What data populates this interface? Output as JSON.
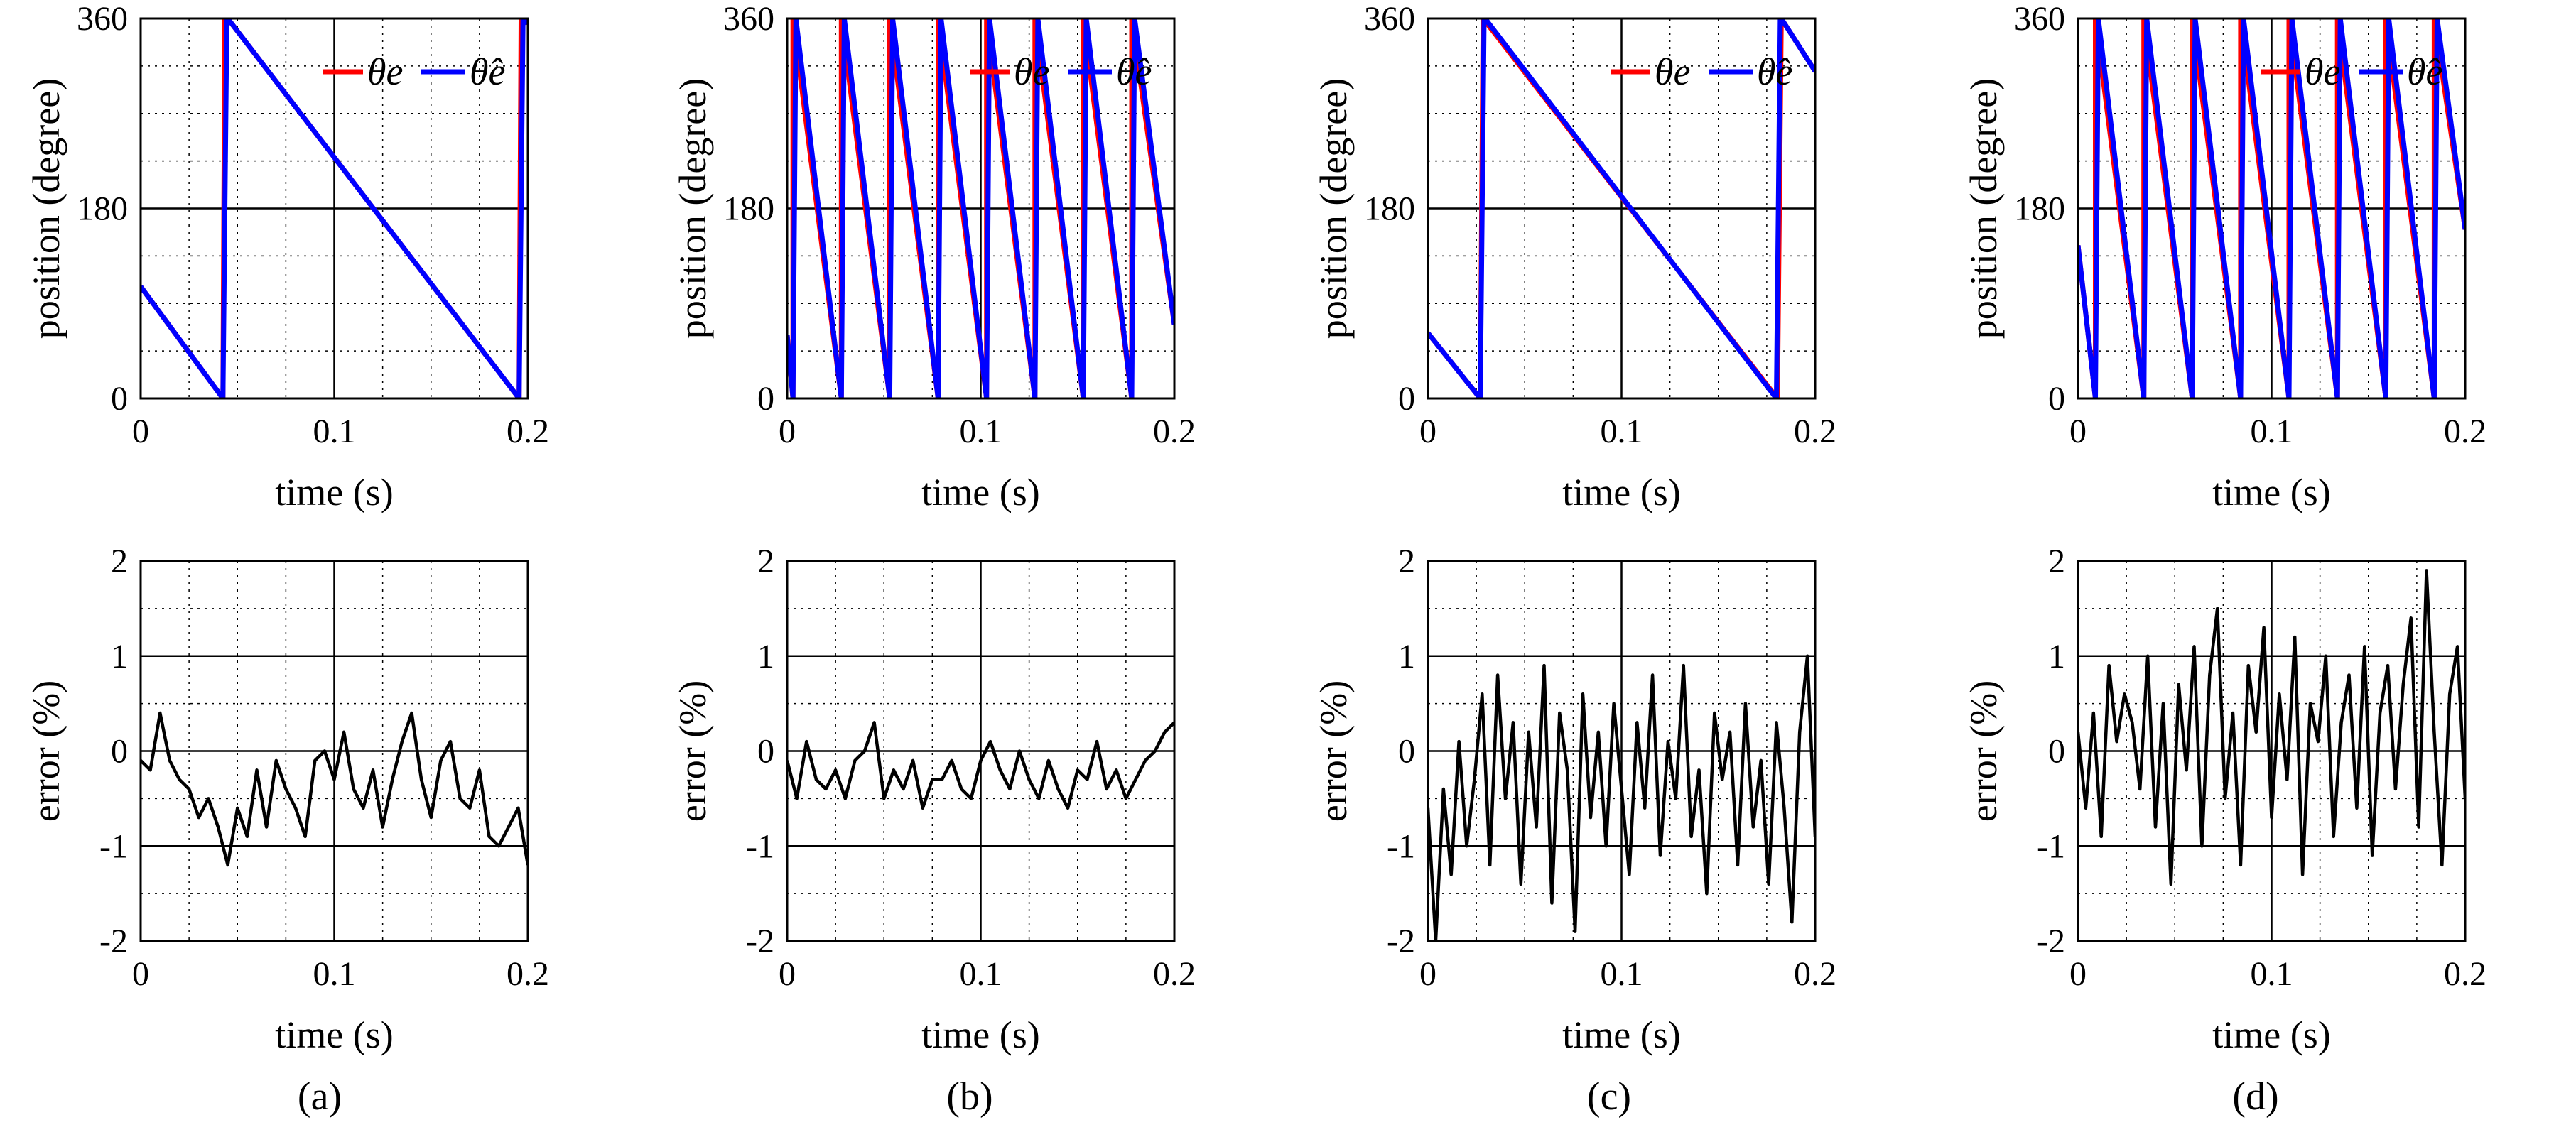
{
  "chart_data": [
    {
      "panel": "a",
      "kind": "position",
      "type": "line",
      "xlabel": "time  (s)",
      "ylabel": "position (degree)",
      "xlim": [
        0,
        0.2
      ],
      "ylim": [
        0,
        360
      ],
      "xticks": [
        0,
        0.1,
        0.2
      ],
      "xtick_labels": [
        "0",
        "0.1",
        "0.2"
      ],
      "yticks": [
        0,
        180,
        360
      ],
      "ytick_labels": [
        "0",
        "180",
        "360"
      ],
      "grid": true,
      "legend": "top-right",
      "legend_entries": [
        "θe",
        "θ̂e"
      ],
      "series": [
        {
          "name": "θe",
          "color": "#ff0000",
          "x": [
            0,
            0.0425,
            0.0425,
            0.0435,
            0.045,
            0.1955,
            0.1955,
            0.1965,
            0.1975,
            0.2
          ],
          "y": [
            106,
            0,
            0,
            360,
            360,
            0,
            0,
            360,
            360,
            355
          ]
        },
        {
          "name": "θ̂e",
          "color": "#0000ff",
          "x": [
            0,
            0.0425,
            0.0445,
            0.045,
            0.1955,
            0.1975,
            0.198,
            0.2
          ],
          "y": [
            106,
            0,
            360,
            360,
            0,
            360,
            360,
            355
          ]
        }
      ]
    },
    {
      "panel": "b",
      "kind": "position",
      "type": "line",
      "xlabel": "time  (s)",
      "ylabel": "position (degree)",
      "xlim": [
        0,
        0.2
      ],
      "ylim": [
        0,
        360
      ],
      "xticks": [
        0,
        0.1,
        0.2
      ],
      "xtick_labels": [
        "0",
        "0.1",
        "0.2"
      ],
      "yticks": [
        0,
        180,
        360
      ],
      "ytick_labels": [
        "0",
        "180",
        "360"
      ],
      "grid": true,
      "legend": "top-right",
      "legend_entries": [
        "θe",
        "θ̂e"
      ],
      "series": [
        {
          "name": "θe",
          "color": "#ff0000",
          "x": [
            0,
            0.003,
            0.003,
            0.028,
            0.028,
            0.053,
            0.053,
            0.078,
            0.078,
            0.103,
            0.103,
            0.128,
            0.128,
            0.153,
            0.153,
            0.178,
            0.178,
            0.2
          ],
          "y": [
            60,
            0,
            360,
            0,
            360,
            0,
            360,
            0,
            360,
            0,
            360,
            0,
            360,
            0,
            360,
            0,
            360,
            70
          ]
        },
        {
          "name": "θ̂e",
          "color": "#0000ff",
          "x": [
            0,
            0.003,
            0.0045,
            0.028,
            0.0295,
            0.053,
            0.0545,
            0.078,
            0.0795,
            0.103,
            0.1045,
            0.128,
            0.1295,
            0.153,
            0.1545,
            0.178,
            0.1795,
            0.2
          ],
          "y": [
            60,
            0,
            360,
            0,
            360,
            0,
            360,
            0,
            360,
            0,
            360,
            0,
            360,
            0,
            360,
            0,
            360,
            70
          ]
        }
      ]
    },
    {
      "panel": "c",
      "kind": "position",
      "type": "line",
      "xlabel": "time  (s)",
      "ylabel": "position (degree)",
      "xlim": [
        0,
        0.2
      ],
      "ylim": [
        0,
        360
      ],
      "xticks": [
        0,
        0.1,
        0.2
      ],
      "xtick_labels": [
        "0",
        "0.1",
        "0.2"
      ],
      "yticks": [
        0,
        180,
        360
      ],
      "ytick_labels": [
        "0",
        "180",
        "360"
      ],
      "grid": true,
      "legend": "top-right",
      "legend_entries": [
        "θe",
        "θ̂e"
      ],
      "series": [
        {
          "name": "θe",
          "color": "#ff0000",
          "x": [
            0,
            0.027,
            0.027,
            0.0285,
            0.0285,
            0.1805,
            0.1805,
            0.1825,
            0.1825,
            0.2
          ],
          "y": [
            62,
            0,
            0,
            360,
            360,
            0,
            0,
            360,
            360,
            310
          ]
        },
        {
          "name": "θ̂e",
          "color": "#0000ff",
          "x": [
            0,
            0.027,
            0.029,
            0.0295,
            0.18,
            0.182,
            0.1825,
            0.2
          ],
          "y": [
            62,
            0,
            360,
            360,
            0,
            360,
            360,
            310
          ]
        }
      ]
    },
    {
      "panel": "d",
      "kind": "position",
      "type": "line",
      "xlabel": "time  (s)",
      "ylabel": "position (degree)",
      "xlim": [
        0,
        0.2
      ],
      "ylim": [
        0,
        360
      ],
      "xticks": [
        0,
        0.1,
        0.2
      ],
      "xtick_labels": [
        "0",
        "0.1",
        "0.2"
      ],
      "yticks": [
        0,
        180,
        360
      ],
      "ytick_labels": [
        "0",
        "180",
        "360"
      ],
      "grid": true,
      "legend": "top-right",
      "legend_entries": [
        "θe",
        "θ̂e"
      ],
      "series": [
        {
          "name": "θe",
          "color": "#ff0000",
          "x": [
            0,
            0.009,
            0.009,
            0.034,
            0.034,
            0.059,
            0.059,
            0.084,
            0.084,
            0.109,
            0.109,
            0.134,
            0.134,
            0.159,
            0.159,
            0.184,
            0.184,
            0.2
          ],
          "y": [
            145,
            0,
            360,
            0,
            360,
            0,
            360,
            0,
            360,
            0,
            360,
            0,
            360,
            0,
            360,
            0,
            360,
            160
          ]
        },
        {
          "name": "θ̂e",
          "color": "#0000ff",
          "x": [
            0,
            0.009,
            0.0105,
            0.034,
            0.0355,
            0.059,
            0.0605,
            0.084,
            0.0855,
            0.109,
            0.1105,
            0.134,
            0.1355,
            0.159,
            0.1605,
            0.184,
            0.1855,
            0.2
          ],
          "y": [
            145,
            0,
            360,
            0,
            360,
            0,
            360,
            0,
            360,
            0,
            360,
            0,
            360,
            0,
            360,
            0,
            360,
            160
          ]
        }
      ]
    },
    {
      "panel": "a",
      "kind": "error",
      "type": "line",
      "xlabel": "time  (s)",
      "ylabel": "error (%)",
      "xlim": [
        0,
        0.2
      ],
      "ylim": [
        -2,
        2
      ],
      "xticks": [
        0,
        0.1,
        0.2
      ],
      "xtick_labels": [
        "0",
        "0.1",
        "0.2"
      ],
      "yticks": [
        -2,
        -1,
        0,
        1,
        2
      ],
      "ytick_labels": [
        "-2",
        "-1",
        "0",
        "1",
        "2"
      ],
      "grid": true,
      "series": [
        {
          "color": "#000000",
          "x": [
            0,
            0.005,
            0.01,
            0.015,
            0.02,
            0.025,
            0.03,
            0.035,
            0.04,
            0.045,
            0.05,
            0.055,
            0.06,
            0.065,
            0.07,
            0.075,
            0.08,
            0.085,
            0.09,
            0.095,
            0.1,
            0.105,
            0.11,
            0.115,
            0.12,
            0.125,
            0.13,
            0.135,
            0.14,
            0.145,
            0.15,
            0.155,
            0.16,
            0.165,
            0.17,
            0.175,
            0.18,
            0.185,
            0.19,
            0.195,
            0.2
          ],
          "y": [
            -0.1,
            -0.2,
            0.4,
            -0.1,
            -0.3,
            -0.4,
            -0.7,
            -0.5,
            -0.8,
            -1.2,
            -0.6,
            -0.9,
            -0.2,
            -0.8,
            -0.1,
            -0.4,
            -0.6,
            -0.9,
            -0.1,
            0.0,
            -0.3,
            0.2,
            -0.4,
            -0.6,
            -0.2,
            -0.8,
            -0.3,
            0.1,
            0.4,
            -0.3,
            -0.7,
            -0.1,
            0.1,
            -0.5,
            -0.6,
            -0.2,
            -0.9,
            -1.0,
            -0.8,
            -0.6,
            -1.2
          ]
        }
      ]
    },
    {
      "panel": "b",
      "kind": "error",
      "type": "line",
      "xlabel": "time  (s)",
      "ylabel": "error (%)",
      "xlim": [
        0,
        0.2
      ],
      "ylim": [
        -2,
        2
      ],
      "xticks": [
        0,
        0.1,
        0.2
      ],
      "xtick_labels": [
        "0",
        "0.1",
        "0.2"
      ],
      "yticks": [
        -2,
        -1,
        0,
        1,
        2
      ],
      "ytick_labels": [
        "-2",
        "-1",
        "0",
        "1",
        "2"
      ],
      "grid": true,
      "series": [
        {
          "color": "#000000",
          "x": [
            0,
            0.005,
            0.01,
            0.015,
            0.02,
            0.025,
            0.03,
            0.035,
            0.04,
            0.045,
            0.05,
            0.055,
            0.06,
            0.065,
            0.07,
            0.075,
            0.08,
            0.085,
            0.09,
            0.095,
            0.1,
            0.105,
            0.11,
            0.115,
            0.12,
            0.125,
            0.13,
            0.135,
            0.14,
            0.145,
            0.15,
            0.155,
            0.16,
            0.165,
            0.17,
            0.175,
            0.18,
            0.185,
            0.19,
            0.195,
            0.2
          ],
          "y": [
            -0.1,
            -0.5,
            0.1,
            -0.3,
            -0.4,
            -0.2,
            -0.5,
            -0.1,
            0.0,
            0.3,
            -0.5,
            -0.2,
            -0.4,
            -0.1,
            -0.6,
            -0.3,
            -0.3,
            -0.1,
            -0.4,
            -0.5,
            -0.1,
            0.1,
            -0.2,
            -0.4,
            0.0,
            -0.3,
            -0.5,
            -0.1,
            -0.4,
            -0.6,
            -0.2,
            -0.3,
            0.1,
            -0.4,
            -0.2,
            -0.5,
            -0.3,
            -0.1,
            0.0,
            0.2,
            0.3
          ]
        }
      ]
    },
    {
      "panel": "c",
      "kind": "error",
      "type": "line",
      "xlabel": "time  (s)",
      "ylabel": "error (%)",
      "xlim": [
        0,
        0.2
      ],
      "ylim": [
        -2,
        2
      ],
      "xticks": [
        0,
        0.1,
        0.2
      ],
      "xtick_labels": [
        "0",
        "0.1",
        "0.2"
      ],
      "yticks": [
        -2,
        -1,
        0,
        1,
        2
      ],
      "ytick_labels": [
        "-2",
        "-1",
        "0",
        "1",
        "2"
      ],
      "grid": true,
      "series": [
        {
          "color": "#000000",
          "x": [
            0,
            0.004,
            0.008,
            0.012,
            0.016,
            0.02,
            0.024,
            0.028,
            0.032,
            0.036,
            0.04,
            0.044,
            0.048,
            0.052,
            0.056,
            0.06,
            0.064,
            0.068,
            0.072,
            0.076,
            0.08,
            0.084,
            0.088,
            0.092,
            0.096,
            0.1,
            0.104,
            0.108,
            0.112,
            0.116,
            0.12,
            0.124,
            0.128,
            0.132,
            0.136,
            0.14,
            0.144,
            0.148,
            0.152,
            0.156,
            0.16,
            0.164,
            0.168,
            0.172,
            0.176,
            0.18,
            0.184,
            0.188,
            0.192,
            0.196,
            0.2
          ],
          "y": [
            -0.6,
            -2.0,
            -0.4,
            -1.3,
            0.1,
            -1.0,
            -0.3,
            0.6,
            -1.2,
            0.8,
            -0.5,
            0.3,
            -1.4,
            0.2,
            -0.8,
            0.9,
            -1.6,
            0.4,
            -0.2,
            -1.9,
            0.6,
            -0.7,
            0.2,
            -1.0,
            0.5,
            -0.4,
            -1.3,
            0.3,
            -0.6,
            0.8,
            -1.1,
            0.1,
            -0.5,
            0.9,
            -0.9,
            -0.2,
            -1.5,
            0.4,
            -0.3,
            0.2,
            -1.2,
            0.5,
            -0.8,
            -0.1,
            -1.4,
            0.3,
            -0.6,
            -1.8,
            0.2,
            1.0,
            -0.9
          ]
        }
      ]
    },
    {
      "panel": "d",
      "kind": "error",
      "type": "line",
      "xlabel": "time  (s)",
      "ylabel": "error (%)",
      "xlim": [
        0,
        0.2
      ],
      "ylim": [
        -2,
        2
      ],
      "xticks": [
        0,
        0.1,
        0.2
      ],
      "xtick_labels": [
        "0",
        "0.1",
        "0.2"
      ],
      "yticks": [
        -2,
        -1,
        0,
        1,
        2
      ],
      "ytick_labels": [
        "-2",
        "-1",
        "0",
        "1",
        "2"
      ],
      "grid": true,
      "series": [
        {
          "color": "#000000",
          "x": [
            0,
            0.004,
            0.008,
            0.012,
            0.016,
            0.02,
            0.024,
            0.028,
            0.032,
            0.036,
            0.04,
            0.044,
            0.048,
            0.052,
            0.056,
            0.06,
            0.064,
            0.068,
            0.072,
            0.076,
            0.08,
            0.084,
            0.088,
            0.092,
            0.096,
            0.1,
            0.104,
            0.108,
            0.112,
            0.116,
            0.12,
            0.124,
            0.128,
            0.132,
            0.136,
            0.14,
            0.144,
            0.148,
            0.152,
            0.156,
            0.16,
            0.164,
            0.168,
            0.172,
            0.176,
            0.18,
            0.184,
            0.188,
            0.192,
            0.196,
            0.2
          ],
          "y": [
            0.2,
            -0.6,
            0.4,
            -0.9,
            0.9,
            0.1,
            0.6,
            0.3,
            -0.4,
            1.0,
            -0.8,
            0.5,
            -1.4,
            0.7,
            -0.2,
            1.1,
            -1.0,
            0.8,
            1.5,
            -0.5,
            0.4,
            -1.2,
            0.9,
            0.2,
            1.3,
            -0.7,
            0.6,
            -0.3,
            1.2,
            -1.3,
            0.5,
            0.1,
            1.0,
            -0.9,
            0.3,
            0.8,
            -0.6,
            1.1,
            -1.1,
            0.4,
            0.9,
            -0.4,
            0.7,
            1.4,
            -0.8,
            1.9,
            0.2,
            -1.2,
            0.6,
            1.1,
            -0.5
          ]
        }
      ]
    }
  ],
  "captions": [
    "(a)",
    "(b)",
    "(c)",
    "(d)"
  ],
  "colors": {
    "reference": "#ff0000",
    "estimate": "#0000ff",
    "error": "#000000"
  }
}
